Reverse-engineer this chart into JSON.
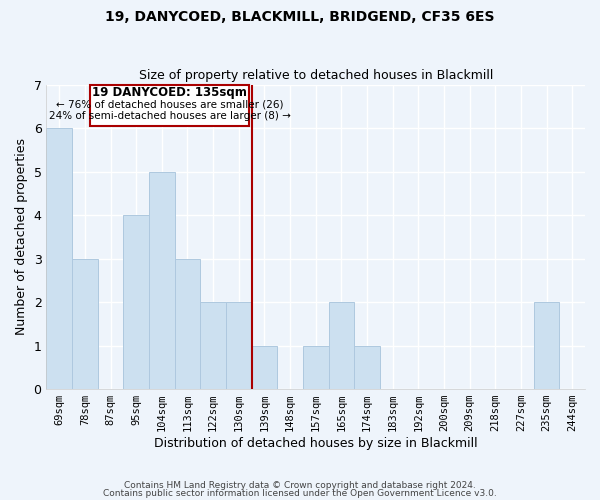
{
  "title1": "19, DANYCOED, BLACKMILL, BRIDGEND, CF35 6ES",
  "title2": "Size of property relative to detached houses in Blackmill",
  "xlabel": "Distribution of detached houses by size in Blackmill",
  "ylabel": "Number of detached properties",
  "bin_labels": [
    "69sqm",
    "78sqm",
    "87sqm",
    "95sqm",
    "104sqm",
    "113sqm",
    "122sqm",
    "130sqm",
    "139sqm",
    "148sqm",
    "157sqm",
    "165sqm",
    "174sqm",
    "183sqm",
    "192sqm",
    "200sqm",
    "209sqm",
    "218sqm",
    "227sqm",
    "235sqm",
    "244sqm"
  ],
  "bar_heights": [
    6,
    3,
    0,
    4,
    5,
    3,
    2,
    2,
    1,
    0,
    1,
    2,
    1,
    0,
    0,
    0,
    0,
    0,
    0,
    2,
    0
  ],
  "bar_color": "#cce0f0",
  "bar_edge_color": "#aec8df",
  "subject_line_color": "#aa0000",
  "ylim": [
    0,
    7
  ],
  "yticks": [
    0,
    1,
    2,
    3,
    4,
    5,
    6,
    7
  ],
  "annotation_title": "19 DANYCOED: 135sqm",
  "annotation_line1": "← 76% of detached houses are smaller (26)",
  "annotation_line2": "24% of semi-detached houses are larger (8) →",
  "annotation_box_color": "#ffffff",
  "annotation_box_edge": "#aa0000",
  "footer1": "Contains HM Land Registry data © Crown copyright and database right 2024.",
  "footer2": "Contains public sector information licensed under the Open Government Licence v3.0.",
  "background_color": "#eef4fb",
  "grid_color": "#ffffff",
  "title_fontsize": 10,
  "subtitle_fontsize": 9
}
